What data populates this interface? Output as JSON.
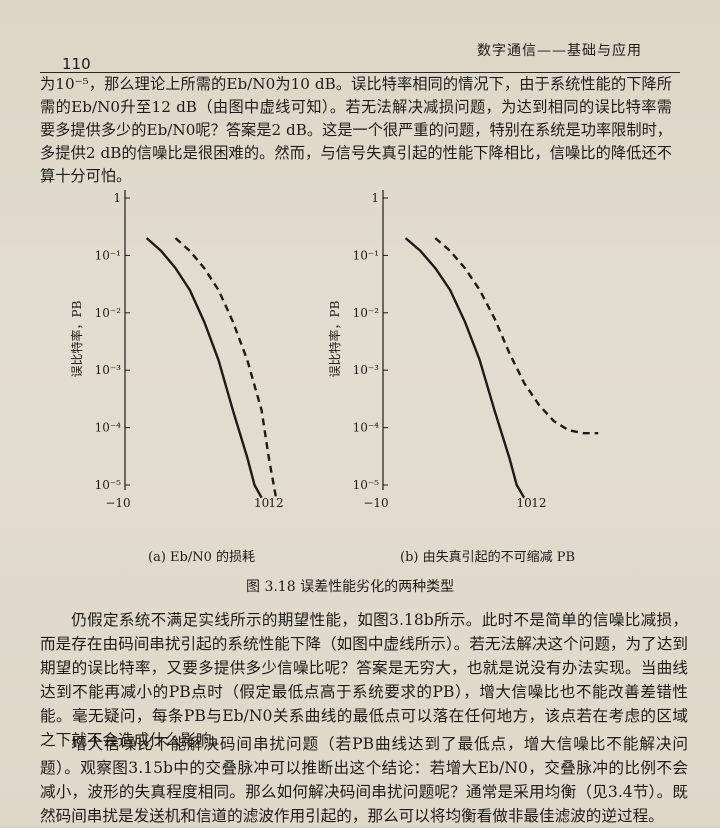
{
  "header": {
    "page_number": "110",
    "book_title": "数字通信——基础与应用"
  },
  "paragraph_top": "为10⁻⁵，那么理论上所需的Eb/N0为10 dB。误比特率相同的情况下，由于系统性能的下降所需的Eb/N0升至12 dB（由图中虚线可知）。若无法解决减损问题，为达到相同的误比特率需要多提供多少的Eb/N0呢？答案是2 dB。这是一个很严重的问题，特别在系统是功率限制时，多提供2 dB的信噪比是很困难的。然而，与信号失真引起的性能下降相比，信噪比的降低还不算十分可怕。",
  "figure": {
    "title": "图 3.18   误差性能劣化的两种类型",
    "caption_a": "(a) Eb/N0 的损耗",
    "caption_b": "(b) 由失真引起的不可缩减 PB"
  },
  "chart_data": [
    {
      "type": "line",
      "ylabel": "误比特率，PB",
      "xlabel": "Eb/N0 (dB)",
      "y_log_scale": true,
      "yticks": [
        "1",
        "10⁻¹",
        "10⁻²",
        "10⁻³",
        "10⁻⁴",
        "10⁻⁵"
      ],
      "xticks": [
        "−10",
        "10",
        "12"
      ],
      "ylim": [
        1e-05,
        1
      ],
      "series": [
        {
          "style": "solid",
          "x": [
            -6,
            -4,
            -2,
            0,
            2,
            4,
            6,
            8,
            9,
            10
          ],
          "y": [
            0.2,
            0.12,
            0.06,
            0.025,
            0.007,
            0.0015,
            0.0002,
            3e-05,
            1e-05,
            6e-06
          ]
        },
        {
          "style": "dashed",
          "x": [
            -2,
            0,
            2,
            4,
            6,
            8,
            10,
            11,
            12
          ],
          "y": [
            0.2,
            0.12,
            0.06,
            0.025,
            0.007,
            0.0015,
            0.0002,
            3e-05,
            6e-06
          ]
        }
      ]
    },
    {
      "type": "line",
      "ylabel": "误比特率，PB",
      "xlabel": "Eb/N0 (dB)",
      "y_log_scale": true,
      "yticks": [
        "1",
        "10⁻¹",
        "10⁻²",
        "10⁻³",
        "10⁻⁴",
        "10⁻⁵"
      ],
      "xticks": [
        "−10",
        "10",
        "12"
      ],
      "ylim": [
        1e-05,
        1
      ],
      "series": [
        {
          "style": "solid",
          "x": [
            -6,
            -4,
            -2,
            0,
            2,
            4,
            6,
            8,
            9,
            10
          ],
          "y": [
            0.2,
            0.12,
            0.06,
            0.025,
            0.007,
            0.0015,
            0.0002,
            3e-05,
            1e-05,
            6e-06
          ]
        },
        {
          "style": "dashed",
          "x": [
            -2,
            0,
            2,
            4,
            6,
            8,
            10,
            12,
            14,
            16,
            18,
            20
          ],
          "y": [
            0.2,
            0.12,
            0.06,
            0.025,
            0.008,
            0.002,
            0.0006,
            0.00025,
            0.00013,
            9e-05,
            8e-05,
            8e-05
          ]
        }
      ]
    }
  ],
  "paragraph_2": "仍假定系统不满足实线所示的期望性能，如图3.18b所示。此时不是简单的信噪比减损，而是存在由码间串扰引起的系统性能下降（如图中虚线所示）。若无法解决这个问题，为了达到期望的误比特率，又要多提供多少信噪比呢？答案是无穷大，也就是说没有办法实现。当曲线达到不能再减小的PB点时（假定最低点高于系统要求的PB），增大信噪比也不能改善差错性能。毫无疑问，每条PB与Eb/N0关系曲线的最低点可以落在任何地方，该点若在考虑的区域之下就不会造成什么影响。",
  "paragraph_3": "增大信噪比不能解决码间串扰问题（若PB曲线达到了最低点，增大信噪比不能解决问题）。观察图3.15b中的交叠脉冲可以推断出这个结论：若增大Eb/N0，交叠脉冲的比例不会减小，波形的失真程度相同。那么如何解决码间串扰问题呢？通常是采用均衡（见3.4节）。既然码间串扰是发送机和信道的滤波作用引起的，那么可以将均衡看做非最佳滤波的逆过程。"
}
